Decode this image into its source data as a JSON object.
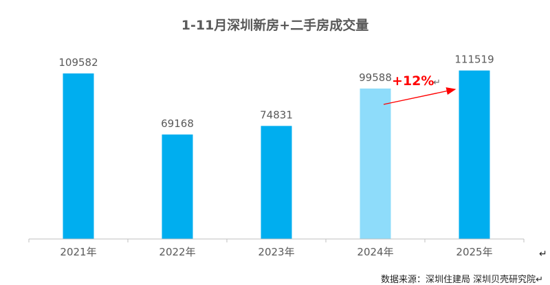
{
  "chart_data": {
    "type": "bar",
    "title": "1-11月深圳新房+二手房成交量",
    "categories": [
      "2021年",
      "2022年",
      "2023年",
      "2024年",
      "2025年"
    ],
    "values": [
      109582,
      69168,
      74831,
      99588,
      111519
    ],
    "ylim": [
      0,
      120000
    ],
    "grid": false,
    "colors": {
      "bar": "#00AEEF",
      "highlight_bar": "#8EDCFA",
      "highlight_index": 3,
      "annotation": "#FF0000"
    },
    "annotation": {
      "text": "+12%",
      "return_mark": "↵",
      "from_index": 3,
      "to_index": 4
    }
  },
  "footer": {
    "source": "数据来源：深圳住建局  深圳贝壳研究院↵",
    "corner_mark": "↵"
  }
}
